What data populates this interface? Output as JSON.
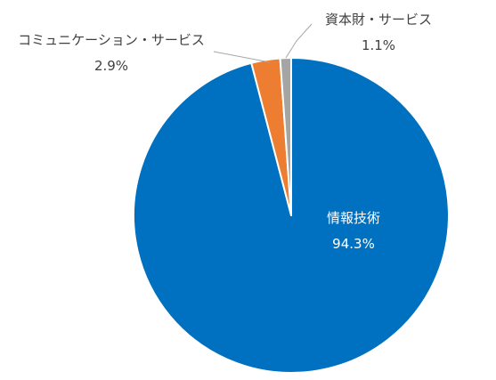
{
  "chart_data": {
    "type": "pie",
    "title": "",
    "slices": [
      {
        "name": "情報技術",
        "value": 94.3,
        "label": "94.3%",
        "color": "#0070c0"
      },
      {
        "name": "コミュニケーション・サービス",
        "value": 2.9,
        "label": "2.9%",
        "color": "#ed7d31"
      },
      {
        "name": "資本財・サービス",
        "value": 1.1,
        "label": "1.1%",
        "color": "#a5a5a5"
      }
    ],
    "start_angle_deg": 0,
    "direction": "clockwise",
    "legend": "none",
    "data_labels": "category-and-percent"
  }
}
